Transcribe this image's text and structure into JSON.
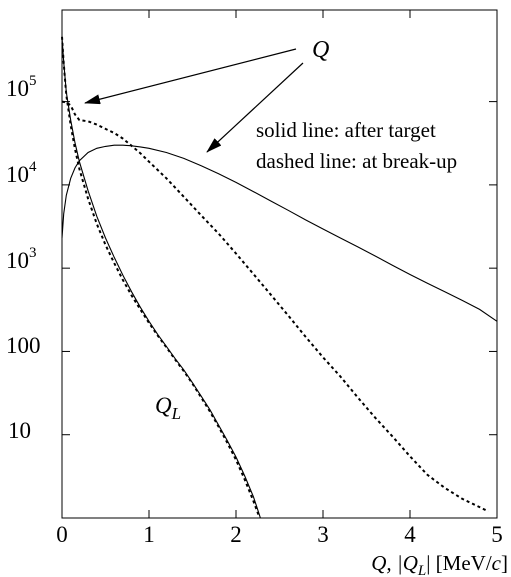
{
  "chart_data": {
    "type": "line",
    "title": "",
    "xlabel": {
      "pre": "Q, |Q",
      "sub": "L",
      "post": "| [MeV/",
      "italic": "c",
      "close": "]"
    },
    "ylabel": "",
    "xlim": [
      0,
      5
    ],
    "ylim": [
      1,
      1000000
    ],
    "y_scale": "log",
    "grid": false,
    "legend": "none",
    "x_ticks": [
      "0",
      "1",
      "2",
      "3",
      "4",
      "5"
    ],
    "y_ticks": [
      {
        "value": 100000,
        "base": "10",
        "exp": "5"
      },
      {
        "value": 10000,
        "base": "10",
        "exp": "4"
      },
      {
        "value": 1000,
        "base": "10",
        "exp": "3"
      },
      {
        "value": 100,
        "base": "100",
        "exp": ""
      },
      {
        "value": 10,
        "base": "10",
        "exp": ""
      }
    ],
    "annotations": {
      "q_label": "Q",
      "ql_label": {
        "main": "Q",
        "sub": "L"
      },
      "legend_solid": "solid line: after target",
      "legend_dashed": "dashed line: at break-up"
    },
    "series": [
      {
        "style": "solid",
        "points": [
          [
            0.0,
            2300
          ],
          [
            0.02,
            4500
          ],
          [
            0.05,
            7500
          ],
          [
            0.1,
            12000
          ],
          [
            0.15,
            16000
          ],
          [
            0.2,
            19500
          ],
          [
            0.3,
            24500
          ],
          [
            0.4,
            27500
          ],
          [
            0.5,
            29000
          ],
          [
            0.6,
            30000
          ],
          [
            0.7,
            30000
          ],
          [
            0.8,
            29500
          ],
          [
            0.9,
            28600
          ],
          [
            1.0,
            27500
          ],
          [
            1.2,
            24500
          ],
          [
            1.4,
            20800
          ],
          [
            1.6,
            17000
          ],
          [
            1.8,
            13600
          ],
          [
            2.0,
            10700
          ],
          [
            2.2,
            8300
          ],
          [
            2.4,
            6400
          ],
          [
            2.6,
            4950
          ],
          [
            2.8,
            3800
          ],
          [
            3.0,
            2950
          ],
          [
            3.2,
            2300
          ],
          [
            3.4,
            1800
          ],
          [
            3.6,
            1400
          ],
          [
            3.8,
            1080
          ],
          [
            4.0,
            840
          ],
          [
            4.2,
            660
          ],
          [
            4.4,
            520
          ],
          [
            4.6,
            410
          ],
          [
            4.8,
            320
          ],
          [
            5.0,
            230
          ]
        ]
      },
      {
        "style": "dashed",
        "points": [
          [
            0.0,
            100000
          ],
          [
            0.05,
            98000
          ],
          [
            0.1,
            90000
          ],
          [
            0.15,
            70000
          ],
          [
            0.2,
            60000
          ],
          [
            0.3,
            58000
          ],
          [
            0.4,
            53000
          ],
          [
            0.5,
            47000
          ],
          [
            0.6,
            42000
          ],
          [
            0.7,
            36000
          ],
          [
            0.8,
            29500
          ],
          [
            0.9,
            24000
          ],
          [
            1.0,
            19000
          ],
          [
            1.2,
            12000
          ],
          [
            1.4,
            7200
          ],
          [
            1.6,
            4300
          ],
          [
            1.8,
            2600
          ],
          [
            2.0,
            1500
          ],
          [
            2.2,
            850
          ],
          [
            2.4,
            480
          ],
          [
            2.6,
            270
          ],
          [
            2.8,
            150
          ],
          [
            3.0,
            85
          ],
          [
            3.2,
            50
          ],
          [
            3.4,
            28
          ],
          [
            3.6,
            16
          ],
          [
            3.8,
            9.5
          ],
          [
            4.0,
            5.5
          ],
          [
            4.2,
            3.3
          ],
          [
            4.4,
            2.3
          ],
          [
            4.6,
            1.7
          ],
          [
            4.8,
            1.35
          ],
          [
            4.9,
            1.2
          ]
        ]
      },
      {
        "style": "solid",
        "points": [
          [
            0.0,
            600000
          ],
          [
            0.02,
            300000
          ],
          [
            0.05,
            130000
          ],
          [
            0.1,
            60000
          ],
          [
            0.15,
            32000
          ],
          [
            0.2,
            19000
          ],
          [
            0.3,
            8500
          ],
          [
            0.4,
            4200
          ],
          [
            0.5,
            2300
          ],
          [
            0.6,
            1350
          ],
          [
            0.7,
            820
          ],
          [
            0.8,
            520
          ],
          [
            0.9,
            340
          ],
          [
            1.0,
            230
          ],
          [
            1.1,
            160
          ],
          [
            1.2,
            115
          ],
          [
            1.3,
            82
          ],
          [
            1.4,
            60
          ],
          [
            1.5,
            42
          ],
          [
            1.6,
            29
          ],
          [
            1.7,
            20
          ],
          [
            1.8,
            13
          ],
          [
            1.9,
            8.5
          ],
          [
            2.0,
            5.4
          ],
          [
            2.1,
            3.2
          ],
          [
            2.2,
            1.8
          ],
          [
            2.25,
            1.25
          ],
          [
            2.28,
            1.0
          ]
        ]
      },
      {
        "style": "dashed",
        "points": [
          [
            0.0,
            600000
          ],
          [
            0.02,
            290000
          ],
          [
            0.05,
            120000
          ],
          [
            0.1,
            52000
          ],
          [
            0.15,
            27000
          ],
          [
            0.2,
            15500
          ],
          [
            0.3,
            6800
          ],
          [
            0.4,
            3400
          ],
          [
            0.5,
            1900
          ],
          [
            0.6,
            1150
          ],
          [
            0.7,
            720
          ],
          [
            0.8,
            470
          ],
          [
            0.9,
            320
          ],
          [
            1.0,
            220
          ],
          [
            1.1,
            155
          ],
          [
            1.2,
            112
          ],
          [
            1.3,
            80
          ],
          [
            1.4,
            58
          ],
          [
            1.5,
            41
          ],
          [
            1.6,
            28
          ],
          [
            1.7,
            19
          ],
          [
            1.8,
            12.5
          ],
          [
            1.9,
            8.0
          ],
          [
            2.0,
            5.0
          ],
          [
            2.1,
            2.9
          ],
          [
            2.2,
            1.6
          ],
          [
            2.25,
            1.15
          ],
          [
            2.27,
            1.0
          ]
        ]
      }
    ]
  }
}
